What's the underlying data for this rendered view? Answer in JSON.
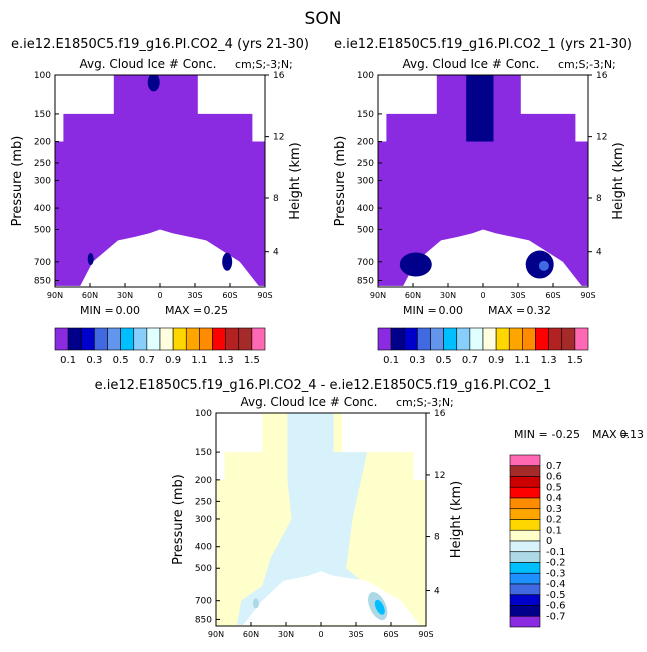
{
  "figure_title": "SON",
  "chart_data": [
    {
      "type": "heatmap",
      "case_title": "e.ie12.E1850C5.f19_g16.PI.CO2_4 (yrs 21-30)",
      "field_title": "Avg. Cloud Ice # Conc.",
      "units": "cm;S;-3;N;",
      "xlabel": "",
      "ylabel": "Pressure (mb)",
      "y2label": "Height (km)",
      "x_ticks": [
        "90N",
        "60N",
        "30N",
        "0",
        "30S",
        "60S",
        "90S"
      ],
      "y_ticks": [
        "100",
        "150",
        "200",
        "250",
        "300",
        "400",
        "500",
        "700",
        "850"
      ],
      "y2_ticks": [
        "16",
        "12",
        "8",
        "4"
      ],
      "stats": {
        "min_label": "MIN =",
        "min": "0.00",
        "max_label": "MAX =",
        "max": "0.25"
      },
      "levels": [
        0.1,
        0.2,
        0.3,
        0.4,
        0.5,
        0.6,
        0.7,
        0.8,
        0.9,
        1.0,
        1.1,
        1.2,
        1.3,
        1.4,
        1.5
      ],
      "colorbar_labels": [
        "0.1",
        "0.3",
        "0.5",
        "0.7",
        "0.9",
        "1.1",
        "1.3",
        "1.5"
      ],
      "colors": [
        "#8a2be2",
        "#00008b",
        "#0000cd",
        "#4169e1",
        "#6495ed",
        "#00bfff",
        "#87cefa",
        "#e0ffff",
        "#ffffe0",
        "#ffd700",
        "#ffa500",
        "#ff8c00",
        "#ff0000",
        "#b22222",
        "#a52a2a",
        "#ff69b4"
      ],
      "background_color": "#8a2be2",
      "feature_color": "#00008b"
    },
    {
      "type": "heatmap",
      "case_title": "e.ie12.E1850C5.f19_g16.PI.CO2_1 (yrs 21-30)",
      "field_title": "Avg. Cloud Ice # Conc.",
      "units": "cm;S;-3;N;",
      "xlabel": "",
      "ylabel": "Pressure (mb)",
      "y2label": "Height (km)",
      "x_ticks": [
        "90N",
        "60N",
        "30N",
        "0",
        "30S",
        "60S",
        "90S"
      ],
      "y_ticks": [
        "100",
        "150",
        "200",
        "250",
        "300",
        "400",
        "500",
        "700",
        "850"
      ],
      "y2_ticks": [
        "16",
        "12",
        "8",
        "4"
      ],
      "stats": {
        "min_label": "MIN =",
        "min": "0.00",
        "max_label": "MAX =",
        "max": "0.32"
      },
      "levels": [
        0.1,
        0.2,
        0.3,
        0.4,
        0.5,
        0.6,
        0.7,
        0.8,
        0.9,
        1.0,
        1.1,
        1.2,
        1.3,
        1.4,
        1.5
      ],
      "colorbar_labels": [
        "0.1",
        "0.3",
        "0.5",
        "0.7",
        "0.9",
        "1.1",
        "1.3",
        "1.5"
      ],
      "colors": [
        "#8a2be2",
        "#00008b",
        "#0000cd",
        "#4169e1",
        "#6495ed",
        "#00bfff",
        "#87cefa",
        "#e0ffff",
        "#ffffe0",
        "#ffd700",
        "#ffa500",
        "#ff8c00",
        "#ff0000",
        "#b22222",
        "#a52a2a",
        "#ff69b4"
      ],
      "background_color": "#8a2be2",
      "feature_color": "#00008b"
    },
    {
      "type": "heatmap",
      "case_title": "e.ie12.E1850C5.f19_g16.PI.CO2_4 - e.ie12.E1850C5.f19_g16.PI.CO2_1",
      "field_title": "Avg. Cloud Ice # Conc.",
      "units": "cm;S;-3;N;",
      "xlabel": "",
      "ylabel": "Pressure (mb)",
      "y2label": "Height (km)",
      "x_ticks": [
        "90N",
        "60N",
        "30N",
        "0",
        "30S",
        "60S",
        "90S"
      ],
      "y_ticks": [
        "100",
        "150",
        "200",
        "250",
        "300",
        "400",
        "500",
        "700",
        "850"
      ],
      "y2_ticks": [
        "16",
        "12",
        "8",
        "4"
      ],
      "stats": {
        "min_label": "MIN =",
        "min": "-0.25",
        "max_label": "MAX =",
        "max": "0.13"
      },
      "levels": [
        -0.7,
        -0.6,
        -0.5,
        -0.4,
        -0.3,
        -0.2,
        -0.1,
        0,
        0.1,
        0.2,
        0.3,
        0.4,
        0.5,
        0.6,
        0.7
      ],
      "colorbar_labels": [
        "0.7",
        "0.6",
        "0.5",
        "0.4",
        "0.3",
        "0.2",
        "0.1",
        "0",
        "-0.1",
        "-0.2",
        "-0.3",
        "-0.4",
        "-0.5",
        "-0.6",
        "-0.7"
      ],
      "colors": [
        "#8a2be2",
        "#00008b",
        "#0000cd",
        "#4169e1",
        "#1e90ff",
        "#00bfff",
        "#add8e6",
        "#d8f2fb",
        "#ffffcc",
        "#ffd700",
        "#ffa500",
        "#ff8c00",
        "#ff0000",
        "#cc0000",
        "#a52a2a",
        "#ff69b4"
      ],
      "pos_color": "#ffffcc",
      "neg_color": "#d8f2fb",
      "minor_neg_color": "#add8e6",
      "strong_neg_color": "#00bfff"
    }
  ]
}
